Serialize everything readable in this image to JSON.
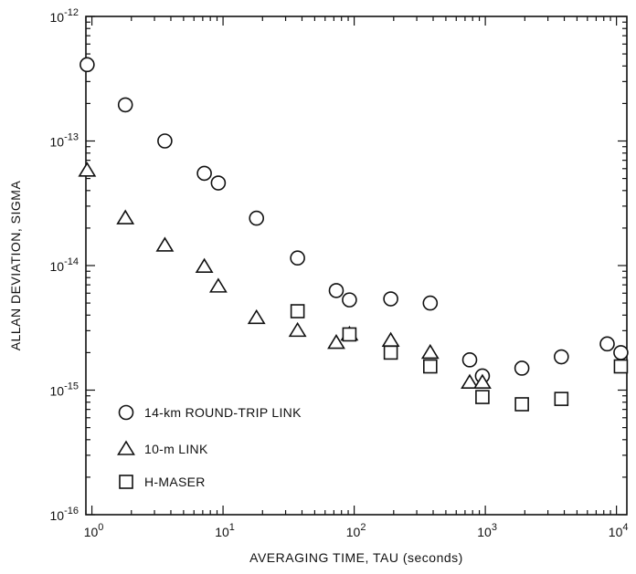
{
  "chart_data": {
    "type": "scatter",
    "xlabel": "AVERAGING TIME, TAU (seconds)",
    "ylabel": "ALLAN DEVIATION, SIGMA",
    "xscale": "log",
    "yscale": "log",
    "xlim": [
      0.9,
      12000
    ],
    "ylim": [
      1e-16,
      1e-12
    ],
    "x_tick_values": [
      1,
      10,
      100,
      1000,
      10000
    ],
    "x_tick_labels": [
      {
        "base": "10",
        "exp": "0"
      },
      {
        "base": "10",
        "exp": "1"
      },
      {
        "base": "10",
        "exp": "2"
      },
      {
        "base": "10",
        "exp": "3"
      },
      {
        "base": "10",
        "exp": "4"
      }
    ],
    "y_tick_values": [
      1e-12,
      1e-13,
      1e-14,
      1e-15,
      1e-16
    ],
    "y_tick_labels": [
      {
        "base": "10",
        "exp": "-12"
      },
      {
        "base": "10",
        "exp": "-13"
      },
      {
        "base": "10",
        "exp": "-14"
      },
      {
        "base": "10",
        "exp": "-15"
      },
      {
        "base": "10",
        "exp": "-16"
      }
    ],
    "grid": false,
    "legend_position": "bottom-left",
    "series": [
      {
        "name": "14-km ROUND-TRIP LINK",
        "marker": "circle",
        "x": [
          0.92,
          1.8,
          3.6,
          7.2,
          9.2,
          18,
          37,
          73,
          92,
          190,
          380,
          760,
          950,
          1900,
          3800,
          8500,
          10800
        ],
        "y": [
          4.1e-13,
          1.95e-13,
          1e-13,
          5.5e-14,
          4.6e-14,
          2.4e-14,
          1.15e-14,
          6.3e-15,
          5.3e-15,
          5.4e-15,
          5e-15,
          1.75e-15,
          1.3e-15,
          1.5e-15,
          1.85e-15,
          2.35e-15,
          2e-15
        ]
      },
      {
        "name": "10-m LINK",
        "marker": "triangle",
        "x": [
          0.92,
          1.8,
          3.6,
          7.2,
          9.2,
          18,
          37,
          73,
          92,
          190,
          380,
          760,
          950
        ],
        "y": [
          5.8e-14,
          2.4e-14,
          1.45e-14,
          9.8e-15,
          6.8e-15,
          3.8e-15,
          3e-15,
          2.4e-15,
          2.8e-15,
          2.5e-15,
          2e-15,
          1.15e-15,
          1.15e-15
        ]
      },
      {
        "name": "H-MASER",
        "marker": "square",
        "x": [
          37,
          92,
          190,
          380,
          950,
          1900,
          3800,
          10800
        ],
        "y": [
          4.3e-15,
          2.8e-15,
          2e-15,
          1.55e-15,
          8.8e-16,
          7.7e-16,
          8.5e-16,
          1.55e-15
        ]
      }
    ]
  }
}
